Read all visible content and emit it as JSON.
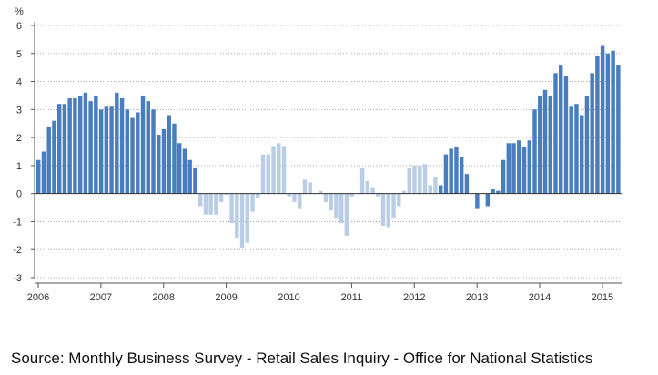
{
  "chart_data": {
    "type": "bar",
    "title": "",
    "ylabel": "%",
    "xlabel": "",
    "ylim": [
      -3,
      6
    ],
    "yticks": [
      "-3",
      "-2",
      "-1",
      "0",
      "1",
      "2",
      "3",
      "4",
      "5",
      "6"
    ],
    "xticks": [
      "2006",
      "2007",
      "2008",
      "2009",
      "2010",
      "2011",
      "2012",
      "2013",
      "2014",
      "2015"
    ],
    "grid": true,
    "start": "Jan 2006",
    "frequency": "monthly",
    "values": [
      1.2,
      1.5,
      2.4,
      2.6,
      3.2,
      3.2,
      3.4,
      3.4,
      3.5,
      3.6,
      3.3,
      3.5,
      3.0,
      3.1,
      3.1,
      3.6,
      3.4,
      3.0,
      2.7,
      2.9,
      3.5,
      3.3,
      3.0,
      2.1,
      2.3,
      2.8,
      2.5,
      1.8,
      1.6,
      1.2,
      0.9,
      -0.45,
      -0.75,
      -0.75,
      -0.75,
      -0.3,
      -0.05,
      -1.05,
      -1.6,
      -1.95,
      -1.75,
      -0.65,
      -0.15,
      1.4,
      1.4,
      1.7,
      1.8,
      1.7,
      -0.1,
      -0.3,
      -0.55,
      0.5,
      0.4,
      0.0,
      0.1,
      -0.3,
      -0.6,
      -0.9,
      -1.05,
      -1.5,
      -0.1,
      0.0,
      0.9,
      0.45,
      0.2,
      -0.1,
      -1.15,
      -1.2,
      -0.85,
      -0.45,
      0.1,
      0.9,
      1.0,
      1.0,
      1.05,
      0.3,
      0.6,
      0.3,
      1.4,
      1.6,
      1.65,
      1.3,
      0.7,
      0.0,
      -0.55,
      0.0,
      -0.45,
      0.15,
      0.1,
      1.2,
      1.8,
      1.8,
      1.9,
      1.65,
      1.9,
      3.0,
      3.5,
      3.7,
      3.5,
      4.3,
      4.6,
      4.2,
      3.1,
      3.2,
      2.8,
      3.5,
      4.3,
      4.9,
      5.3,
      5.0,
      5.1,
      4.6
    ],
    "highlighted_ranges": [
      [
        0,
        30
      ],
      [
        77,
        111
      ]
    ],
    "colors": {
      "highlight": "#4a7dbd",
      "normal": "#b9cde6"
    }
  },
  "source": "Source: Monthly Business Survey - Retail Sales Inquiry - Office for National Statistics"
}
